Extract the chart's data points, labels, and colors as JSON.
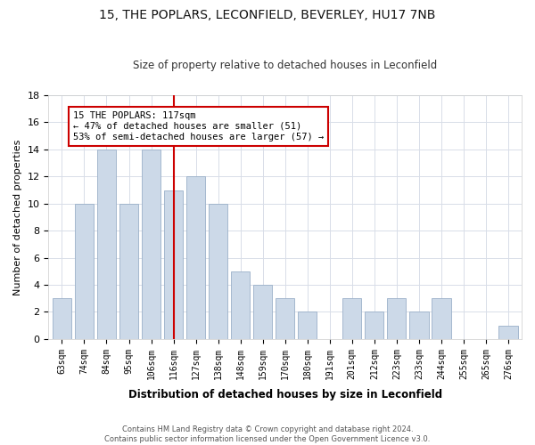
{
  "title1": "15, THE POPLARS, LECONFIELD, BEVERLEY, HU17 7NB",
  "title2": "Size of property relative to detached houses in Leconfield",
  "xlabel": "Distribution of detached houses by size in Leconfield",
  "ylabel": "Number of detached properties",
  "categories": [
    "63sqm",
    "74sqm",
    "84sqm",
    "95sqm",
    "106sqm",
    "116sqm",
    "127sqm",
    "138sqm",
    "148sqm",
    "159sqm",
    "170sqm",
    "180sqm",
    "191sqm",
    "201sqm",
    "212sqm",
    "223sqm",
    "233sqm",
    "244sqm",
    "255sqm",
    "265sqm",
    "276sqm"
  ],
  "values": [
    3,
    10,
    14,
    10,
    14,
    11,
    12,
    10,
    5,
    4,
    3,
    2,
    0,
    3,
    2,
    3,
    2,
    3,
    0,
    0,
    1
  ],
  "bar_color": "#ccd9e8",
  "bar_edgecolor": "#9ab0c8",
  "highlight_line_index": 5,
  "highlight_line_color": "#cc0000",
  "annotation_text": "15 THE POPLARS: 117sqm\n← 47% of detached houses are smaller (51)\n53% of semi-detached houses are larger (57) →",
  "annotation_box_color": "#ffffff",
  "annotation_box_edgecolor": "#cc0000",
  "ylim": [
    0,
    18
  ],
  "yticks": [
    0,
    2,
    4,
    6,
    8,
    10,
    12,
    14,
    16,
    18
  ],
  "footer_text": "Contains HM Land Registry data © Crown copyright and database right 2024.\nContains public sector information licensed under the Open Government Licence v3.0.",
  "bg_color": "#ffffff",
  "plot_bg_color": "#ffffff",
  "grid_color": "#d8dde8"
}
